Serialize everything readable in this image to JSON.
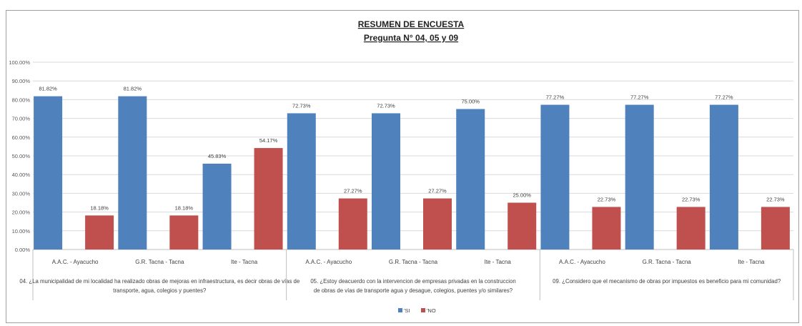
{
  "chart_data": {
    "type": "bar",
    "title": "RESUMEN DE ENCUESTA",
    "subtitle": "Pregunta N° 04, 05 y 09",
    "ylim": [
      0,
      100
    ],
    "yticks": [
      "0.00%",
      "10.00%",
      "20.00%",
      "30.00%",
      "40.00%",
      "50.00%",
      "60.00%",
      "70.00%",
      "80.00%",
      "90.00%",
      "100.00%"
    ],
    "grid": true,
    "legend_position": "bottom",
    "colors": {
      "si": "#4f81bd",
      "no": "#c0504d"
    },
    "groups": [
      {
        "question": [
          "04. ¿La municipalidad de mi localidad ha realizado obras de mejoras en infraestructura, es decir obras de vías de",
          "transporte, agua, colegios y puentes?"
        ],
        "categories": [
          "A.A.C. - Ayacucho",
          "G.R. Tacna - Tacna",
          "Ite - Tacna"
        ],
        "si": [
          81.82,
          81.82,
          45.83
        ],
        "no": [
          18.18,
          18.18,
          54.17
        ],
        "si_labels": [
          "81.82%",
          "81.82%",
          "45.83%"
        ],
        "no_labels": [
          "18.18%",
          "18.18%",
          "54.17%"
        ]
      },
      {
        "question": [
          "05. ¿Estoy deacuerdo con la intervencion de empresas privadas en la construccion",
          "de obras de vías de transporte agua y desague, colegios, puentes y/o similares?"
        ],
        "categories": [
          "A.A.C. - Ayacucho",
          "G.R. Tacna - Tacna",
          "Ite - Tacna"
        ],
        "si": [
          72.73,
          72.73,
          75.0
        ],
        "no": [
          27.27,
          27.27,
          25.0
        ],
        "si_labels": [
          "72.73%",
          "72.73%",
          "75.00%"
        ],
        "no_labels": [
          "27.27%",
          "27.27%",
          "25.00%"
        ]
      },
      {
        "question": [
          "09. ¿Considero que el mecanismo de obras por impuestos es beneficio para mi comunidad?"
        ],
        "categories": [
          "A.A.C. - Ayacucho",
          "G.R. Tacna - Tacna",
          "Ite - Tacna"
        ],
        "si": [
          77.27,
          77.27,
          77.27
        ],
        "no": [
          22.73,
          22.73,
          22.73
        ],
        "si_labels": [
          "77.27%",
          "77.27%",
          "77.27%"
        ],
        "no_labels": [
          "22.73%",
          "22.73%",
          "22.73%"
        ]
      }
    ],
    "series": [
      {
        "name": "SI",
        "legend_label": "'SI"
      },
      {
        "name": "NO",
        "legend_label": "'NO"
      }
    ]
  }
}
